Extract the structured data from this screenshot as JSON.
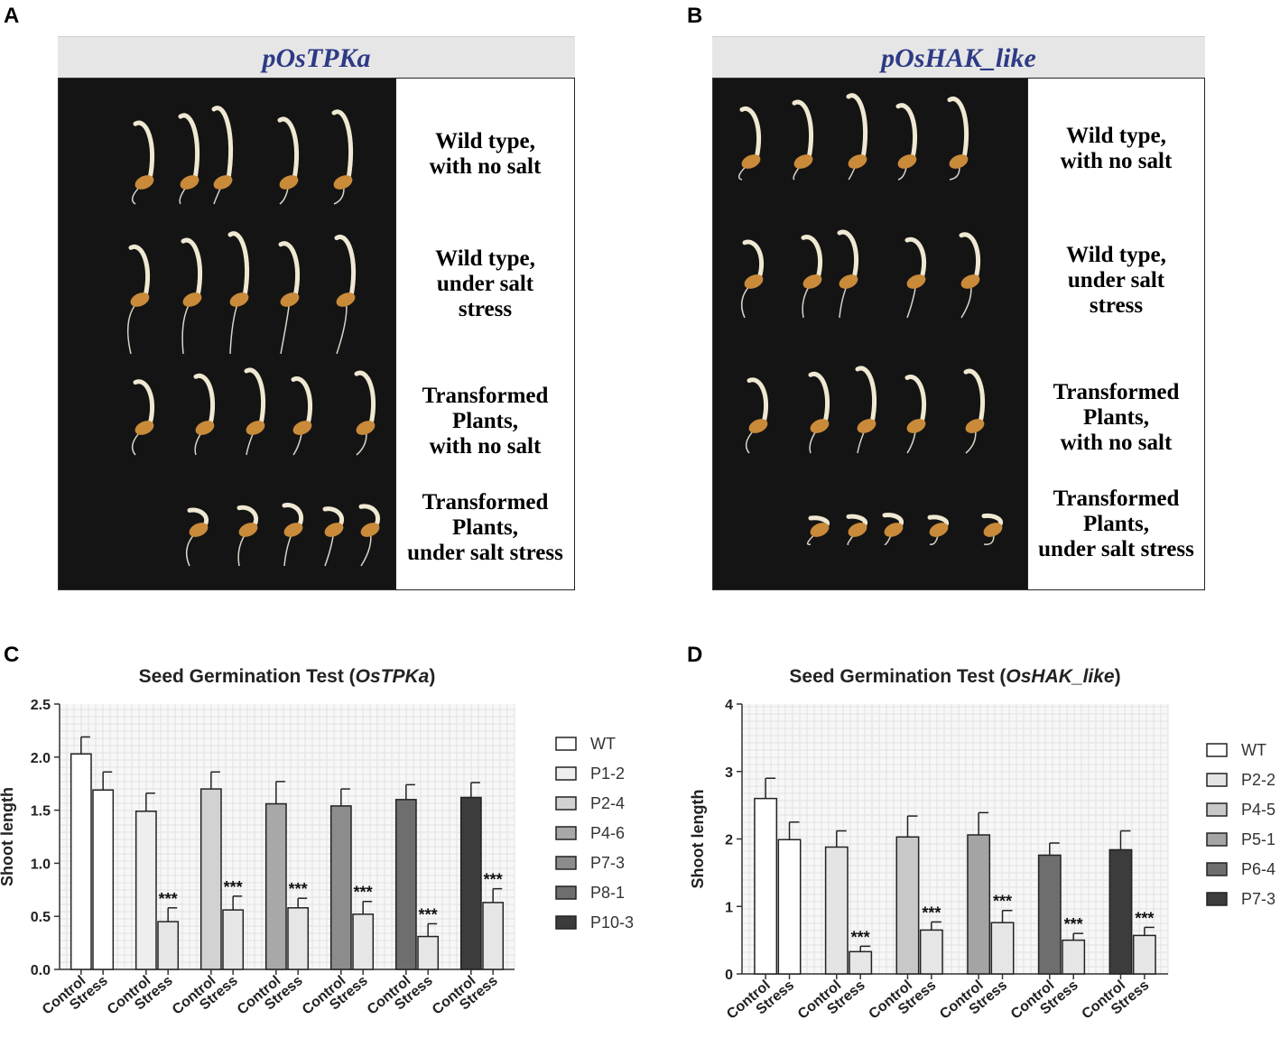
{
  "panels": {
    "A": {
      "letter": "A",
      "title": "pOsTPKa",
      "labels": [
        {
          "l1": "Wild type,",
          "l2": "with no salt",
          "l3": ""
        },
        {
          "l1": "Wild type,",
          "l2": "under salt",
          "l3": "stress"
        },
        {
          "l1": "Transformed",
          "l2": "Plants,",
          "l3": "with no salt"
        },
        {
          "l1": "Transformed",
          "l2": "Plants,",
          "l3": "under salt stress"
        }
      ]
    },
    "B": {
      "letter": "B",
      "title": "pOsHAK_like",
      "labels": [
        {
          "l1": "Wild type,",
          "l2": "with no salt",
          "l3": ""
        },
        {
          "l1": "Wild type,",
          "l2": "under salt",
          "l3": "stress"
        },
        {
          "l1": "Transformed",
          "l2": "Plants,",
          "l3": "with no salt"
        },
        {
          "l1": "Transformed",
          "l2": "Plants,",
          "l3": "under salt stress"
        }
      ]
    },
    "C": {
      "letter": "C"
    },
    "D": {
      "letter": "D"
    }
  },
  "chart_data": [
    {
      "id": "C",
      "type": "bar",
      "title_prefix": "Seed Germination Test (",
      "title_gene": "OsTPKa",
      "title_suffix": ")",
      "ylabel": "Shoot length",
      "ylim": [
        0,
        2.5
      ],
      "yticks": [
        "0.0",
        "0.5",
        "1.0",
        "1.5",
        "2.0",
        "2.5"
      ],
      "ytick_values": [
        0,
        0.5,
        1.0,
        1.5,
        2.0,
        2.5
      ],
      "xtick_labels": [
        "Control",
        "Stress"
      ],
      "significance": "***",
      "groups": [
        {
          "name": "WT",
          "color": "#ffffff",
          "control": 2.03,
          "control_err": 0.16,
          "stress": 1.69,
          "stress_err": 0.17,
          "sig": false
        },
        {
          "name": "P1-2",
          "color": "#eeeeee",
          "control": 1.49,
          "control_err": 0.17,
          "stress": 0.45,
          "stress_err": 0.13,
          "sig": true
        },
        {
          "name": "P2-4",
          "color": "#d2d2d2",
          "control": 1.7,
          "control_err": 0.16,
          "stress": 0.56,
          "stress_err": 0.13,
          "sig": true
        },
        {
          "name": "P4-6",
          "color": "#a8a8a8",
          "control": 1.56,
          "control_err": 0.21,
          "stress": 0.58,
          "stress_err": 0.09,
          "sig": true
        },
        {
          "name": "P7-3",
          "color": "#8c8c8c",
          "control": 1.54,
          "control_err": 0.16,
          "stress": 0.52,
          "stress_err": 0.12,
          "sig": true
        },
        {
          "name": "P8-1",
          "color": "#6e6e6e",
          "control": 1.6,
          "control_err": 0.14,
          "stress": 0.31,
          "stress_err": 0.12,
          "sig": true
        },
        {
          "name": "P10-3",
          "color": "#3c3c3c",
          "control": 1.62,
          "control_err": 0.14,
          "stress": 0.63,
          "stress_err": 0.13,
          "sig": true
        }
      ]
    },
    {
      "id": "D",
      "type": "bar",
      "title_prefix": "Seed Germination Test (",
      "title_gene": "OsHAK_like",
      "title_suffix": ")",
      "ylabel": "Shoot length",
      "ylim": [
        0,
        4
      ],
      "yticks": [
        "0",
        "1",
        "2",
        "3",
        "4"
      ],
      "ytick_values": [
        0,
        1,
        2,
        3,
        4
      ],
      "xtick_labels": [
        "Control",
        "Stress"
      ],
      "significance": "***",
      "groups": [
        {
          "name": "WT",
          "color": "#ffffff",
          "control": 2.6,
          "control_err": 0.3,
          "stress": 1.99,
          "stress_err": 0.26,
          "sig": false
        },
        {
          "name": "P2-2",
          "color": "#e4e4e4",
          "control": 1.88,
          "control_err": 0.24,
          "stress": 0.33,
          "stress_err": 0.08,
          "sig": true
        },
        {
          "name": "P4-5",
          "color": "#c8c8c8",
          "control": 2.03,
          "control_err": 0.31,
          "stress": 0.65,
          "stress_err": 0.12,
          "sig": true
        },
        {
          "name": "P5-1",
          "color": "#a4a4a4",
          "control": 2.06,
          "control_err": 0.33,
          "stress": 0.76,
          "stress_err": 0.18,
          "sig": true
        },
        {
          "name": "P6-4",
          "color": "#6e6e6e",
          "control": 1.76,
          "control_err": 0.18,
          "stress": 0.5,
          "stress_err": 0.1,
          "sig": true
        },
        {
          "name": "P7-3",
          "color": "#3c3c3c",
          "control": 1.84,
          "control_err": 0.28,
          "stress": 0.57,
          "stress_err": 0.12,
          "sig": true
        }
      ]
    }
  ]
}
